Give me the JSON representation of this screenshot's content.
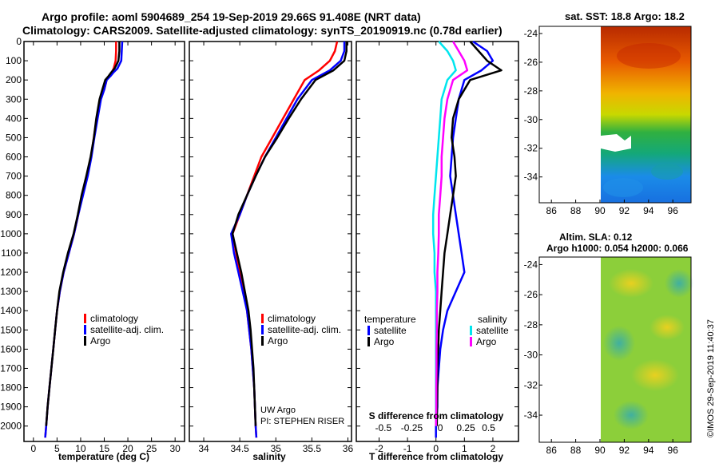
{
  "title_line1": "Argo profile: aoml 5904689_254 19-Sep-2019 29.66S 91.408E (NRT data)",
  "title_line2": "Climatology: CARS2009. Satellite-adjusted climatology: synTS_20190919.nc (0.78d earlier)",
  "colors": {
    "climatology": "#ff0000",
    "satellite": "#0000ff",
    "argo": "#000000",
    "sat_salinity": "#00e5ee",
    "argo_salinity": "#ff00ff"
  },
  "chart_data": [
    {
      "type": "line",
      "name": "temperature",
      "xlabel": "temperature (deg C)",
      "xticks": [
        "0",
        "5",
        "10",
        "15",
        "20",
        "25",
        "30"
      ],
      "xlim": [
        -2,
        32
      ],
      "ylim": [
        2080,
        0
      ],
      "yticks": [
        "0",
        "100",
        "200",
        "300",
        "400",
        "500",
        "600",
        "700",
        "800",
        "900",
        "1000",
        "1100",
        "1200",
        "1300",
        "1400",
        "1500",
        "1600",
        "1700",
        "1800",
        "1900",
        "2000"
      ],
      "legend": [
        "climatology",
        "satellite-adj. clim.",
        "Argo"
      ],
      "series": [
        {
          "name": "climatology",
          "color": "#ff0000",
          "x": [
            17.5,
            17.5,
            17.4,
            17.2,
            17.0,
            16.6,
            16.0,
            15.5,
            15.0,
            14.2,
            13.4,
            12.8,
            12.2,
            11.4,
            10.4,
            9.5,
            8.6,
            7.5,
            6.4,
            5.6,
            5.0,
            4.6,
            4.2,
            3.8,
            3.4,
            3.0,
            2.7,
            2.5
          ],
          "y": [
            0,
            50,
            100,
            120,
            140,
            160,
            180,
            200,
            250,
            300,
            400,
            500,
            600,
            700,
            800,
            900,
            1000,
            1100,
            1200,
            1300,
            1400,
            1500,
            1600,
            1700,
            1800,
            1900,
            2000,
            2060
          ]
        },
        {
          "name": "satellite",
          "color": "#0000ff",
          "x": [
            18.8,
            18.7,
            18.6,
            18.2,
            17.8,
            17.0,
            16.3,
            15.5,
            15.0,
            14.3,
            13.6,
            12.9,
            12.3,
            11.5,
            10.5,
            9.5,
            8.6,
            7.5,
            6.4,
            5.6,
            5.0,
            4.6,
            4.2,
            3.8,
            3.4,
            3.0,
            2.7,
            2.5
          ],
          "y": [
            0,
            50,
            100,
            120,
            140,
            160,
            180,
            200,
            250,
            300,
            400,
            500,
            600,
            700,
            800,
            900,
            1000,
            1100,
            1200,
            1300,
            1400,
            1500,
            1600,
            1700,
            1800,
            1900,
            2000,
            2060
          ]
        },
        {
          "name": "Argo",
          "color": "#000000",
          "x": [
            18.2,
            18.2,
            18.0,
            17.6,
            17.2,
            16.5,
            15.9,
            15.2,
            14.6,
            14.0,
            13.3,
            12.8,
            12.1,
            11.2,
            10.2,
            9.4,
            8.5,
            7.3,
            6.3,
            5.5,
            5.0,
            4.6,
            4.2,
            3.8,
            3.4,
            3.0,
            2.7
          ],
          "y": [
            0,
            50,
            100,
            120,
            140,
            160,
            180,
            200,
            250,
            300,
            400,
            500,
            600,
            700,
            800,
            900,
            1000,
            1100,
            1200,
            1300,
            1400,
            1500,
            1600,
            1700,
            1800,
            1900,
            2000
          ]
        }
      ]
    },
    {
      "type": "line",
      "name": "salinity",
      "xlabel": "salinity",
      "xticks": [
        "34",
        "34.5",
        "35",
        "35.5",
        "36"
      ],
      "xlim": [
        33.8,
        36.05
      ],
      "ylim": [
        2080,
        0
      ],
      "legend": [
        "climatology",
        "satellite-adj. clim.",
        "Argo"
      ],
      "annotation": [
        "UW Argo",
        "PI: STEPHEN RISER"
      ],
      "series": [
        {
          "name": "climatology",
          "color": "#ff0000",
          "x": [
            35.85,
            35.82,
            35.75,
            35.6,
            35.4,
            35.25,
            35.1,
            34.95,
            34.8,
            34.7,
            34.6,
            34.5,
            34.4,
            34.45,
            34.5,
            34.55,
            34.6,
            34.63,
            34.66,
            34.68,
            34.7,
            34.71,
            34.72,
            34.73
          ],
          "y": [
            0,
            50,
            100,
            150,
            200,
            300,
            400,
            500,
            600,
            700,
            800,
            900,
            1000,
            1100,
            1200,
            1300,
            1400,
            1500,
            1600,
            1700,
            1800,
            1900,
            2000,
            2060
          ]
        },
        {
          "name": "satellite",
          "color": "#0000ff",
          "x": [
            35.95,
            35.95,
            35.9,
            35.75,
            35.5,
            35.3,
            35.15,
            35.0,
            34.85,
            34.72,
            34.6,
            34.5,
            34.38,
            34.42,
            34.48,
            34.54,
            34.6,
            34.63,
            34.66,
            34.68,
            34.7,
            34.71,
            34.72,
            34.73
          ],
          "y": [
            0,
            50,
            100,
            150,
            200,
            300,
            400,
            500,
            600,
            700,
            800,
            900,
            1000,
            1100,
            1200,
            1300,
            1400,
            1500,
            1600,
            1700,
            1800,
            1900,
            2000,
            2060
          ]
        },
        {
          "name": "Argo",
          "color": "#000000",
          "x": [
            35.98,
            35.98,
            35.95,
            35.8,
            35.55,
            35.35,
            35.18,
            35.02,
            34.85,
            34.72,
            34.6,
            34.48,
            34.4,
            34.46,
            34.52,
            34.57,
            34.62,
            34.65,
            34.67,
            34.69,
            34.7,
            34.71,
            34.72
          ],
          "y": [
            0,
            50,
            100,
            150,
            200,
            300,
            400,
            500,
            600,
            700,
            800,
            900,
            1000,
            1100,
            1200,
            1300,
            1400,
            1500,
            1600,
            1700,
            1800,
            1900,
            2000
          ]
        }
      ]
    },
    {
      "type": "line",
      "name": "differences",
      "xlabel": "T difference from climatology",
      "xticks": [
        "-2",
        "-1",
        "0",
        "1",
        "2"
      ],
      "xlim": [
        -2.8,
        2.9
      ],
      "top_label": "S difference from climatology",
      "top_ticks": [
        "-0.5",
        "-0.25",
        "0",
        "0.25",
        "0.5"
      ],
      "top_tick_T": [
        -1.85,
        -0.85,
        0.15,
        1.05,
        1.85
      ],
      "ylim": [
        2080,
        0
      ],
      "legend_temperature": {
        "title": "temperature",
        "items": [
          "satellite",
          "Argo"
        ]
      },
      "legend_salinity": {
        "title": "salinity",
        "items": [
          "satellite",
          "Argo"
        ]
      },
      "series": [
        {
          "name": "T satellite",
          "color": "#0000ff",
          "x": [
            1.3,
            1.8,
            2.0,
            1.6,
            1.0,
            0.8,
            0.7,
            0.6,
            0.55,
            0.5,
            0.6,
            0.7,
            0.8,
            0.9,
            1.0,
            0.7,
            0.4,
            0.25,
            0.15,
            0.1,
            0.05,
            0.05,
            0.0,
            0.0
          ],
          "y": [
            0,
            50,
            100,
            150,
            200,
            300,
            400,
            500,
            600,
            700,
            800,
            900,
            1000,
            1100,
            1200,
            1300,
            1400,
            1500,
            1600,
            1700,
            1800,
            1900,
            2000,
            2060
          ]
        },
        {
          "name": "T Argo",
          "color": "#000000",
          "x": [
            1.2,
            1.5,
            1.8,
            2.3,
            1.2,
            0.8,
            0.6,
            0.55,
            0.65,
            0.7,
            0.6,
            0.5,
            0.4,
            0.3,
            0.25,
            0.2,
            0.15,
            0.1,
            0.08,
            0.05,
            0.05,
            0.04,
            0.03
          ],
          "y": [
            0,
            50,
            100,
            150,
            200,
            300,
            400,
            500,
            600,
            700,
            800,
            900,
            1000,
            1100,
            1200,
            1300,
            1400,
            1500,
            1600,
            1700,
            1800,
            1900,
            2000
          ]
        },
        {
          "name": "S satellite",
          "color": "#00e5ee",
          "x": [
            0.1,
            0.4,
            0.6,
            0.7,
            0.4,
            0.2,
            0.15,
            0.1,
            0.05,
            0.0,
            -0.05,
            -0.1,
            -0.1,
            -0.05,
            -0.05,
            0.0,
            0.0,
            0.0,
            0.0,
            0.0,
            0.0,
            0.0,
            0.0
          ],
          "y": [
            0,
            50,
            100,
            150,
            200,
            300,
            400,
            500,
            600,
            700,
            800,
            900,
            1000,
            1100,
            1200,
            1300,
            1400,
            1500,
            1600,
            1700,
            1800,
            1900,
            2000
          ]
        },
        {
          "name": "S Argo",
          "color": "#ff00ff",
          "x": [
            0.6,
            0.8,
            1.0,
            1.1,
            0.6,
            0.4,
            0.3,
            0.25,
            0.2,
            0.2,
            0.15,
            0.1,
            0.1,
            0.08,
            0.05,
            0.05,
            0.03,
            0.03,
            0.02,
            0.02,
            0.01,
            0.01,
            0.0
          ],
          "y": [
            0,
            50,
            100,
            150,
            200,
            300,
            400,
            500,
            600,
            700,
            800,
            900,
            1000,
            1100,
            1200,
            1300,
            1400,
            1500,
            1600,
            1700,
            1800,
            1900,
            2000
          ]
        }
      ]
    },
    {
      "type": "heatmap",
      "name": "sst_map",
      "title": "sat. SST: 18.8 Argo: 18.2",
      "xticks": [
        "86",
        "88",
        "90",
        "92",
        "94",
        "96"
      ],
      "yticks": [
        "-24",
        "-26",
        "-28",
        "-30",
        "-32",
        "-34"
      ]
    },
    {
      "type": "heatmap",
      "name": "sla_map",
      "title_line1": "Altim. SLA: 0.12",
      "title_line2": "Argo h1000: 0.054 h2000: 0.066",
      "xticks": [
        "86",
        "88",
        "90",
        "92",
        "94",
        "96"
      ],
      "yticks": [
        "-24",
        "-26",
        "-28",
        "-30",
        "-32",
        "-34"
      ]
    }
  ],
  "watermark": "©IMOS 29-Sep-2019 11:40:37"
}
